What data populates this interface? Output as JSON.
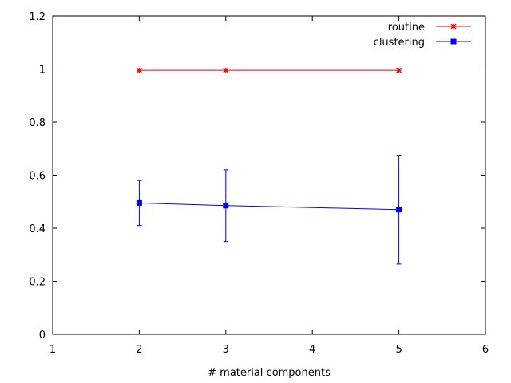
{
  "chart_data": {
    "type": "line",
    "xlabel": "# material components",
    "ylabel": "",
    "xlim": [
      1,
      6
    ],
    "ylim": [
      0,
      1.2
    ],
    "xticks": [
      "1",
      "2",
      "3",
      "4",
      "5",
      "6"
    ],
    "yticks": [
      "0",
      "0.2",
      "0.4",
      "0.6",
      "0.8",
      "1",
      "1.2"
    ],
    "grid": false,
    "legend_position": "top-right",
    "series": [
      {
        "name": "routine",
        "color": "#ff0000",
        "marker": "star",
        "points": [
          {
            "x": 2,
            "y": 0.995
          },
          {
            "x": 3,
            "y": 0.995
          },
          {
            "x": 5,
            "y": 0.995
          }
        ]
      },
      {
        "name": "clustering",
        "color": "#0000ff",
        "marker": "square",
        "points": [
          {
            "x": 2,
            "y": 0.495,
            "ylow": 0.41,
            "yhigh": 0.58
          },
          {
            "x": 3,
            "y": 0.485,
            "ylow": 0.35,
            "yhigh": 0.62
          },
          {
            "x": 5,
            "y": 0.47,
            "ylow": 0.265,
            "yhigh": 0.675
          }
        ]
      }
    ]
  }
}
